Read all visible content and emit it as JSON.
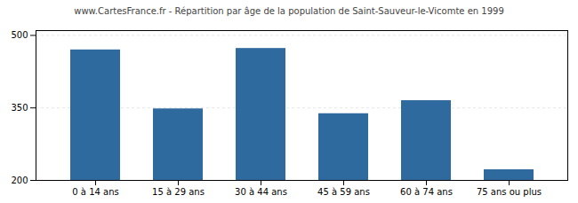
{
  "chart_data": {
    "type": "bar",
    "title": "www.CartesFrance.fr - Répartition par âge de la population de Saint-Sauveur-le-Vicomte en 1999",
    "categories": [
      "0 à 14 ans",
      "15 à 29 ans",
      "30 à 44 ans",
      "45 à 59 ans",
      "60 à 74 ans",
      "75 ans ou plus"
    ],
    "values": [
      470,
      348,
      473,
      338,
      365,
      222
    ],
    "color": "#2e6a9e",
    "ylim": [
      200,
      510
    ],
    "yticks": [
      200,
      350,
      500
    ],
    "grid": true
  }
}
